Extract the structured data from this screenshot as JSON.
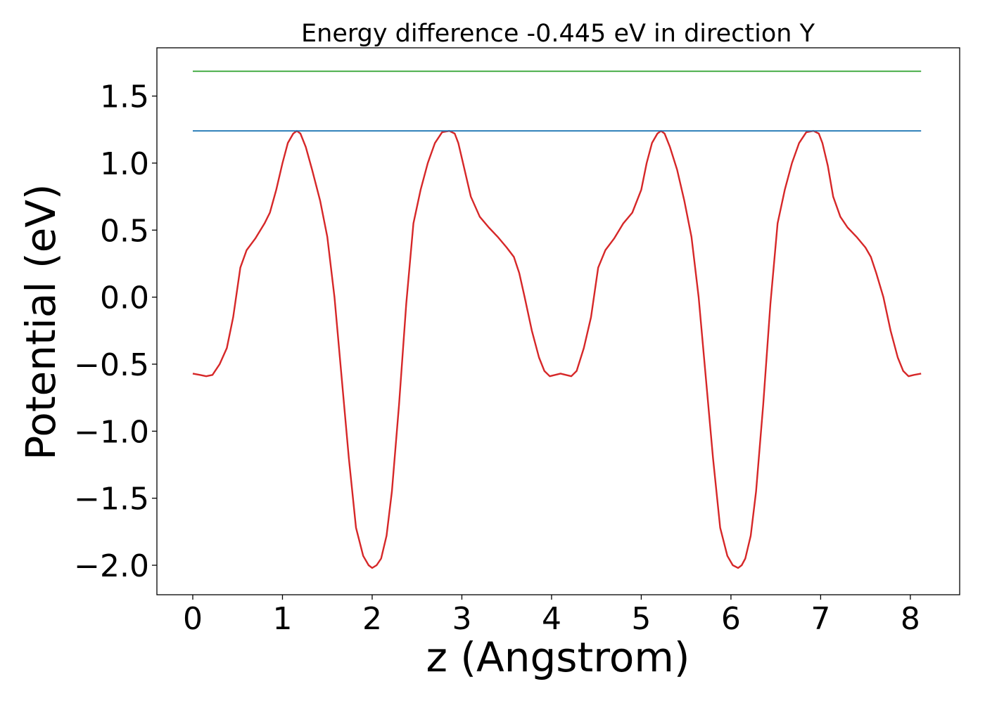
{
  "chart_data": {
    "type": "line",
    "title": "Energy difference -0.445 eV in direction Y",
    "xlabel": "z (Angstrom)",
    "ylabel": "Potential (eV)",
    "xlim": [
      -0.4,
      8.55
    ],
    "ylim": [
      -2.22,
      1.86
    ],
    "xticks": [
      0,
      1,
      2,
      3,
      4,
      5,
      6,
      7,
      8
    ],
    "xtick_labels": [
      "0",
      "1",
      "2",
      "3",
      "4",
      "5",
      "6",
      "7",
      "8"
    ],
    "yticks": [
      1.5,
      1.0,
      0.5,
      0.0,
      -0.5,
      -1.0,
      -1.5,
      -2.0
    ],
    "ytick_labels": [
      "1.5",
      "1.0",
      "0.5",
      "0.0",
      "−0.5",
      "−1.0",
      "−1.5",
      "−2.0"
    ],
    "grid": false,
    "series": [
      {
        "color": "#d62728",
        "x": [
          0.0,
          0.08,
          0.15,
          0.22,
          0.3,
          0.38,
          0.45,
          0.53,
          0.6,
          0.7,
          0.8,
          0.86,
          0.93,
          1.0,
          1.06,
          1.12,
          1.16,
          1.2,
          1.26,
          1.33,
          1.42,
          1.5,
          1.58,
          1.66,
          1.74,
          1.82,
          1.9,
          1.96,
          2.0,
          2.05,
          2.1,
          2.16,
          2.22,
          2.3,
          2.38,
          2.46,
          2.54,
          2.62,
          2.7,
          2.78,
          2.86,
          2.92,
          2.96,
          3.02,
          3.1,
          3.2,
          3.3,
          3.4,
          3.5,
          3.58,
          3.64,
          3.7,
          3.78,
          3.86,
          3.92,
          3.98,
          4.04,
          4.1,
          4.16,
          4.22,
          4.28,
          4.36,
          4.44,
          4.52,
          4.6,
          4.7,
          4.8,
          4.9,
          5.0,
          5.06,
          5.12,
          5.18,
          5.22,
          5.26,
          5.32,
          5.4,
          5.48,
          5.56,
          5.64,
          5.72,
          5.8,
          5.88,
          5.96,
          6.02,
          6.08,
          6.12,
          6.16,
          6.22,
          6.28,
          6.36,
          6.44,
          6.52,
          6.6,
          6.68,
          6.76,
          6.84,
          6.92,
          6.98,
          7.02,
          7.08,
          7.14,
          7.22,
          7.3,
          7.4,
          7.5,
          7.56,
          7.62,
          7.7,
          7.78,
          7.86,
          7.92,
          7.98,
          8.04,
          8.12
        ],
        "y": [
          -0.57,
          -0.58,
          -0.59,
          -0.58,
          -0.5,
          -0.38,
          -0.15,
          0.22,
          0.35,
          0.44,
          0.55,
          0.63,
          0.8,
          1.0,
          1.15,
          1.22,
          1.24,
          1.22,
          1.12,
          0.95,
          0.72,
          0.45,
          0.0,
          -0.6,
          -1.2,
          -1.72,
          -1.93,
          -2.0,
          -2.02,
          -2.0,
          -1.95,
          -1.78,
          -1.45,
          -0.8,
          -0.05,
          0.55,
          0.8,
          1.0,
          1.15,
          1.23,
          1.24,
          1.22,
          1.15,
          0.98,
          0.75,
          0.6,
          0.52,
          0.45,
          0.37,
          0.3,
          0.18,
          0.0,
          -0.25,
          -0.45,
          -0.55,
          -0.59,
          -0.58,
          -0.57,
          -0.58,
          -0.59,
          -0.55,
          -0.38,
          -0.15,
          0.22,
          0.35,
          0.44,
          0.55,
          0.63,
          0.8,
          1.0,
          1.15,
          1.22,
          1.24,
          1.22,
          1.12,
          0.95,
          0.72,
          0.45,
          0.0,
          -0.6,
          -1.2,
          -1.72,
          -1.93,
          -2.0,
          -2.02,
          -2.0,
          -1.95,
          -1.78,
          -1.45,
          -0.8,
          -0.05,
          0.55,
          0.8,
          1.0,
          1.15,
          1.23,
          1.24,
          1.22,
          1.15,
          0.98,
          0.75,
          0.6,
          0.52,
          0.45,
          0.37,
          0.3,
          0.18,
          0.0,
          -0.25,
          -0.45,
          -0.55,
          -0.59,
          -0.58,
          -0.57
        ]
      },
      {
        "color": "#1f77b4",
        "x": [
          0,
          8.12
        ],
        "y": [
          1.24,
          1.24
        ]
      },
      {
        "color": "#2ca02c",
        "x": [
          0,
          8.12
        ],
        "y": [
          1.685,
          1.685
        ]
      }
    ]
  }
}
